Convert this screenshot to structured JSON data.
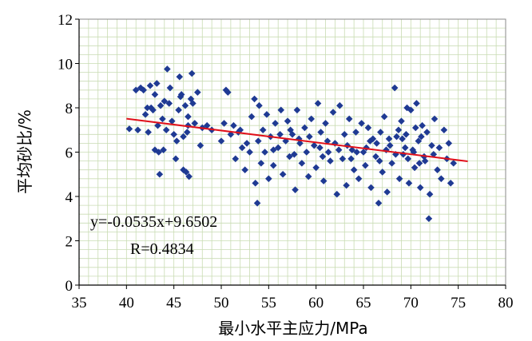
{
  "chart_data": {
    "type": "scatter",
    "xlabel": "最小水平主应力/MPa",
    "ylabel": "平均砂比/%",
    "xlim": [
      35,
      80
    ],
    "ylim": [
      0,
      12
    ],
    "x_ticks": [
      "35",
      "40",
      "45",
      "50",
      "55",
      "60",
      "65",
      "70",
      "75",
      "80"
    ],
    "y_ticks": [
      "0",
      "2",
      "4",
      "6",
      "8",
      "10",
      "12"
    ],
    "grid": true,
    "marker_color": "#1f3a93",
    "trendline_color": "#e0101a",
    "trendline": {
      "slope": -0.0535,
      "intercept": 9.6502,
      "x_range": [
        40,
        76
      ]
    },
    "annotations": {
      "equation": "y=-0.0535x+9.6502",
      "r_value": "R=0.4834"
    },
    "points": [
      [
        40.3,
        7.05
      ],
      [
        41.0,
        8.8
      ],
      [
        41.2,
        7.0
      ],
      [
        41.5,
        8.9
      ],
      [
        41.8,
        8.8
      ],
      [
        42.0,
        7.7
      ],
      [
        42.2,
        8.0
      ],
      [
        42.3,
        6.9
      ],
      [
        42.5,
        9.0
      ],
      [
        42.6,
        8.0
      ],
      [
        42.8,
        7.9
      ],
      [
        43.0,
        6.1
      ],
      [
        43.0,
        8.6
      ],
      [
        43.2,
        9.1
      ],
      [
        43.3,
        7.2
      ],
      [
        43.4,
        6.0
      ],
      [
        43.5,
        5.0
      ],
      [
        43.6,
        8.1
      ],
      [
        43.8,
        7.5
      ],
      [
        43.9,
        6.1
      ],
      [
        44.0,
        8.3
      ],
      [
        44.2,
        7.0
      ],
      [
        44.3,
        9.75
      ],
      [
        44.5,
        8.2
      ],
      [
        44.6,
        8.9
      ],
      [
        44.8,
        7.4
      ],
      [
        45.0,
        6.8
      ],
      [
        45.2,
        5.7
      ],
      [
        45.3,
        6.5
      ],
      [
        45.5,
        7.9
      ],
      [
        45.6,
        9.4
      ],
      [
        45.7,
        8.5
      ],
      [
        45.8,
        8.6
      ],
      [
        46.0,
        5.2
      ],
      [
        46.0,
        6.7
      ],
      [
        46.2,
        8.1
      ],
      [
        46.3,
        5.1
      ],
      [
        46.4,
        6.9
      ],
      [
        46.5,
        7.2
      ],
      [
        46.5,
        7.6
      ],
      [
        46.6,
        4.9
      ],
      [
        46.8,
        8.4
      ],
      [
        46.9,
        9.55
      ],
      [
        47.0,
        8.2
      ],
      [
        47.2,
        7.3
      ],
      [
        47.5,
        8.7
      ],
      [
        47.8,
        6.3
      ],
      [
        48.0,
        7.1
      ],
      [
        48.5,
        7.2
      ],
      [
        49.0,
        7.0
      ],
      [
        50.0,
        6.5
      ],
      [
        50.3,
        7.3
      ],
      [
        50.5,
        8.8
      ],
      [
        50.7,
        8.7
      ],
      [
        51.0,
        6.8
      ],
      [
        51.3,
        7.2
      ],
      [
        51.5,
        5.7
      ],
      [
        51.8,
        6.9
      ],
      [
        52.0,
        7.0
      ],
      [
        52.2,
        6.2
      ],
      [
        52.5,
        5.2
      ],
      [
        52.7,
        6.4
      ],
      [
        53.0,
        6.0
      ],
      [
        53.2,
        7.6
      ],
      [
        53.5,
        8.4
      ],
      [
        53.6,
        4.6
      ],
      [
        53.8,
        3.7
      ],
      [
        53.9,
        6.5
      ],
      [
        54.0,
        8.1
      ],
      [
        54.2,
        5.5
      ],
      [
        54.4,
        7.0
      ],
      [
        54.6,
        6.0
      ],
      [
        54.8,
        7.7
      ],
      [
        55.0,
        4.8
      ],
      [
        55.2,
        6.7
      ],
      [
        55.5,
        5.4
      ],
      [
        55.7,
        7.3
      ],
      [
        56.0,
        6.2
      ],
      [
        56.3,
        7.9
      ],
      [
        56.5,
        5.0
      ],
      [
        56.8,
        6.5
      ],
      [
        57.0,
        7.4
      ],
      [
        57.2,
        5.8
      ],
      [
        57.5,
        6.8
      ],
      [
        57.8,
        4.3
      ],
      [
        58.0,
        7.9
      ],
      [
        58.2,
        6.6
      ],
      [
        58.5,
        5.5
      ],
      [
        58.8,
        7.1
      ],
      [
        59.0,
        6.0
      ],
      [
        59.2,
        4.9
      ],
      [
        59.5,
        7.5
      ],
      [
        59.8,
        6.3
      ],
      [
        60.0,
        5.3
      ],
      [
        60.2,
        8.2
      ],
      [
        60.5,
        6.9
      ],
      [
        60.8,
        4.7
      ],
      [
        61.0,
        7.3
      ],
      [
        61.3,
        6.0
      ],
      [
        61.5,
        5.6
      ],
      [
        61.8,
        7.8
      ],
      [
        62.0,
        6.4
      ],
      [
        62.2,
        4.1
      ],
      [
        62.5,
        8.1
      ],
      [
        62.8,
        5.7
      ],
      [
        63.0,
        6.8
      ],
      [
        63.2,
        4.5
      ],
      [
        63.5,
        7.5
      ],
      [
        63.8,
        6.1
      ],
      [
        64.0,
        5.2
      ],
      [
        64.2,
        6.9
      ],
      [
        64.5,
        4.8
      ],
      [
        64.8,
        7.3
      ],
      [
        65.0,
        6.0
      ],
      [
        65.2,
        5.4
      ],
      [
        65.5,
        7.1
      ],
      [
        65.8,
        4.4
      ],
      [
        66.0,
        6.6
      ],
      [
        66.3,
        5.8
      ],
      [
        66.6,
        3.7
      ],
      [
        66.8,
        6.9
      ],
      [
        67.0,
        5.1
      ],
      [
        67.2,
        7.6
      ],
      [
        67.5,
        4.2
      ],
      [
        67.8,
        6.3
      ],
      [
        68.0,
        5.5
      ],
      [
        68.3,
        8.9
      ],
      [
        68.5,
        6.7
      ],
      [
        68.8,
        4.8
      ],
      [
        69.0,
        7.4
      ],
      [
        69.2,
        5.9
      ],
      [
        69.5,
        6.8
      ],
      [
        69.6,
        8.0
      ],
      [
        69.8,
        4.6
      ],
      [
        70.0,
        7.9
      ],
      [
        70.2,
        6.1
      ],
      [
        70.4,
        5.3
      ],
      [
        70.6,
        8.2
      ],
      [
        70.8,
        6.5
      ],
      [
        71.0,
        4.4
      ],
      [
        71.2,
        7.2
      ],
      [
        71.5,
        5.6
      ],
      [
        71.7,
        6.9
      ],
      [
        71.9,
        3.0
      ],
      [
        72.0,
        4.1
      ],
      [
        72.2,
        6.3
      ],
      [
        72.5,
        7.5
      ],
      [
        72.8,
        5.2
      ],
      [
        73.0,
        6.2
      ],
      [
        73.2,
        4.8
      ],
      [
        73.5,
        7.0
      ],
      [
        73.8,
        5.7
      ],
      [
        74.0,
        6.4
      ],
      [
        74.2,
        4.6
      ],
      [
        74.5,
        5.5
      ],
      [
        55.5,
        6.1
      ],
      [
        56.2,
        6.8
      ],
      [
        57.3,
        7.0
      ],
      [
        58.3,
        6.4
      ],
      [
        59.3,
        6.7
      ],
      [
        60.4,
        6.2
      ],
      [
        61.2,
        6.5
      ],
      [
        62.4,
        6.1
      ],
      [
        63.3,
        6.3
      ],
      [
        64.3,
        6.0
      ],
      [
        65.3,
        6.2
      ],
      [
        66.4,
        6.4
      ],
      [
        67.4,
        6.1
      ],
      [
        68.4,
        5.9
      ],
      [
        69.4,
        6.2
      ],
      [
        70.3,
        6.0
      ],
      [
        71.4,
        5.8
      ],
      [
        72.4,
        5.9
      ],
      [
        57.7,
        5.9
      ],
      [
        60.7,
        5.8
      ],
      [
        63.7,
        5.7
      ],
      [
        66.7,
        5.6
      ],
      [
        69.7,
        5.7
      ],
      [
        70.9,
        5.5
      ],
      [
        69.1,
        6.6
      ],
      [
        70.5,
        7.1
      ],
      [
        71.1,
        6.7
      ],
      [
        68.7,
        7.0
      ],
      [
        67.7,
        6.6
      ],
      [
        65.7,
        6.5
      ]
    ]
  }
}
